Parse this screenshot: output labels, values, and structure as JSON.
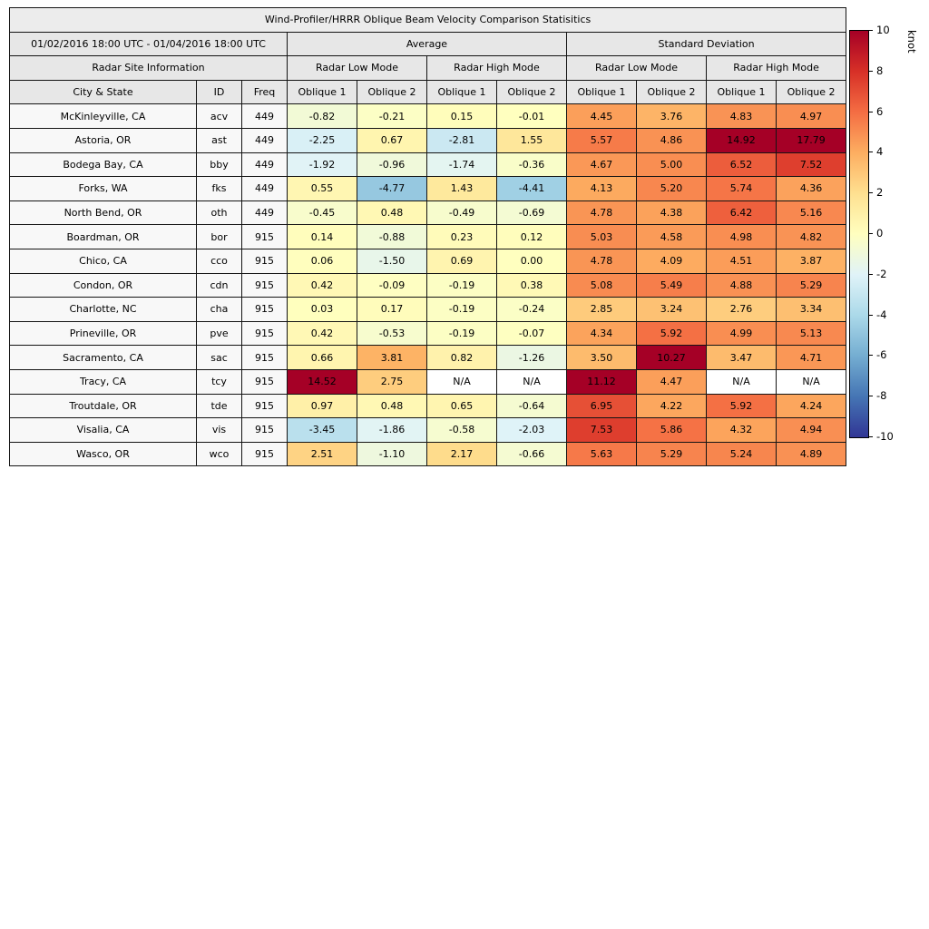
{
  "figure": {
    "title": "Wind-Profiler/HRRR Oblique Beam Velocity Comparison Statisitics",
    "period": "01/02/2016 18:00 UTC - 01/04/2016 18:00 UTC"
  },
  "header": {
    "site_info": "Radar Site Information",
    "average": "Average",
    "std_dev": "Standard Deviation",
    "low_mode": "Radar Low Mode",
    "high_mode": "Radar High Mode",
    "city": "City & State",
    "id": "ID",
    "freq": "Freq",
    "oblique1": "Oblique 1",
    "oblique2": "Oblique 2",
    "na": "N/A"
  },
  "colorbar": {
    "label": "knot",
    "min": -10,
    "max": 10,
    "ticks": [
      10,
      8,
      6,
      4,
      2,
      0,
      -2,
      -4,
      -6,
      -8,
      -10
    ],
    "gradient_top_to_bottom": [
      "#a50026",
      "#d73027",
      "#f46d43",
      "#fdae61",
      "#fee090",
      "#ffffbf",
      "#e0f3f8",
      "#abd9e9",
      "#74add1",
      "#4575b4",
      "#313695"
    ]
  },
  "chart_data": {
    "type": "heatmap",
    "title": "Wind-Profiler/HRRR Oblique Beam Velocity Comparison Statisitics",
    "period": "01/02/2016 18:00 UTC - 01/04/2016 18:00 UTC",
    "unit": "knot",
    "value_range": [
      -10,
      10
    ],
    "value_columns": [
      "Average Radar Low Mode Oblique 1",
      "Average Radar Low Mode Oblique 2",
      "Average Radar High Mode Oblique 1",
      "Average Radar High Mode Oblique 2",
      "Standard Deviation Radar Low Mode Oblique 1",
      "Standard Deviation Radar Low Mode Oblique 2",
      "Standard Deviation Radar High Mode Oblique 1",
      "Standard Deviation Radar High Mode Oblique 2"
    ],
    "rows": [
      {
        "city": "McKinleyville, CA",
        "id": "acv",
        "freq": "449",
        "values": [
          -0.82,
          -0.21,
          0.15,
          -0.01,
          4.45,
          3.76,
          4.83,
          4.97
        ]
      },
      {
        "city": "Astoria, OR",
        "id": "ast",
        "freq": "449",
        "values": [
          -2.25,
          0.67,
          -2.81,
          1.55,
          5.57,
          4.86,
          14.92,
          17.79
        ]
      },
      {
        "city": "Bodega Bay, CA",
        "id": "bby",
        "freq": "449",
        "values": [
          -1.92,
          -0.96,
          -1.74,
          -0.36,
          4.67,
          5.0,
          6.52,
          7.52
        ]
      },
      {
        "city": "Forks, WA",
        "id": "fks",
        "freq": "449",
        "values": [
          0.55,
          -4.77,
          1.43,
          -4.41,
          4.13,
          5.2,
          5.74,
          4.36
        ]
      },
      {
        "city": "North Bend, OR",
        "id": "oth",
        "freq": "449",
        "values": [
          -0.45,
          0.48,
          -0.49,
          -0.69,
          4.78,
          4.38,
          6.42,
          5.16
        ]
      },
      {
        "city": "Boardman, OR",
        "id": "bor",
        "freq": "915",
        "values": [
          0.14,
          -0.88,
          0.23,
          0.12,
          5.03,
          4.58,
          4.98,
          4.82
        ]
      },
      {
        "city": "Chico, CA",
        "id": "cco",
        "freq": "915",
        "values": [
          0.06,
          -1.5,
          0.69,
          0.0,
          4.78,
          4.09,
          4.51,
          3.87
        ]
      },
      {
        "city": "Condon, OR",
        "id": "cdn",
        "freq": "915",
        "values": [
          0.42,
          -0.09,
          -0.19,
          0.38,
          5.08,
          5.49,
          4.88,
          5.29
        ]
      },
      {
        "city": "Charlotte, NC",
        "id": "cha",
        "freq": "915",
        "values": [
          0.03,
          0.17,
          -0.19,
          -0.24,
          2.85,
          3.24,
          2.76,
          3.34
        ]
      },
      {
        "city": "Prineville, OR",
        "id": "pve",
        "freq": "915",
        "values": [
          0.42,
          -0.53,
          -0.19,
          -0.07,
          4.34,
          5.92,
          4.99,
          5.13
        ]
      },
      {
        "city": "Sacramento, CA",
        "id": "sac",
        "freq": "915",
        "values": [
          0.66,
          3.81,
          0.82,
          -1.26,
          3.5,
          10.27,
          3.47,
          4.71
        ]
      },
      {
        "city": "Tracy, CA",
        "id": "tcy",
        "freq": "915",
        "values": [
          14.52,
          2.75,
          null,
          null,
          11.12,
          4.47,
          null,
          null
        ]
      },
      {
        "city": "Troutdale, OR",
        "id": "tde",
        "freq": "915",
        "values": [
          0.97,
          0.48,
          0.65,
          -0.64,
          6.95,
          4.22,
          5.92,
          4.24
        ]
      },
      {
        "city": "Visalia, CA",
        "id": "vis",
        "freq": "915",
        "values": [
          -3.45,
          -1.86,
          -0.58,
          -2.03,
          7.53,
          5.86,
          4.32,
          4.94
        ]
      },
      {
        "city": "Wasco, OR",
        "id": "wco",
        "freq": "915",
        "values": [
          2.51,
          -1.1,
          2.17,
          -0.66,
          5.63,
          5.29,
          5.24,
          4.89
        ]
      }
    ]
  }
}
